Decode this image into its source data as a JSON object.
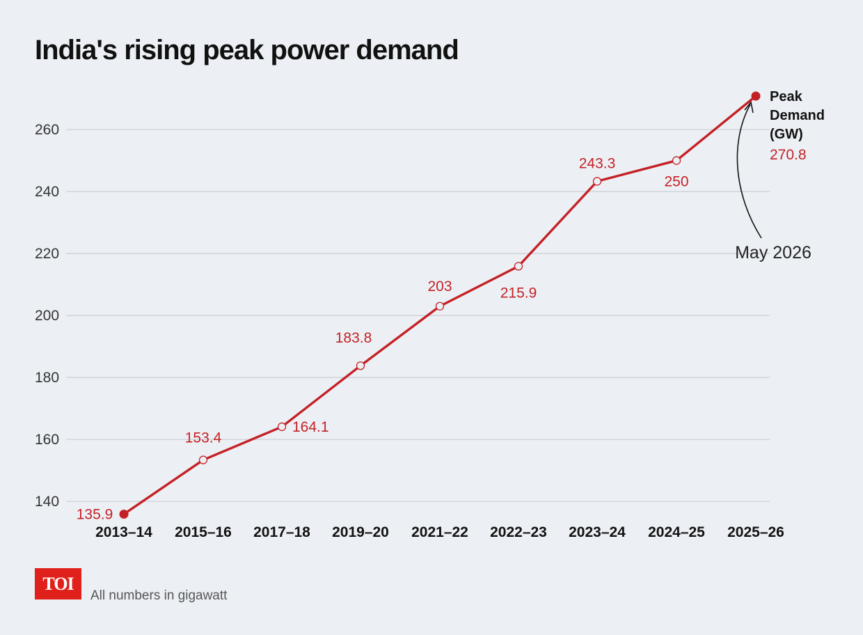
{
  "title": "India's rising peak power demand",
  "footer": {
    "logo_text": "TOI",
    "note": "All numbers in gigawatt"
  },
  "chart_data": {
    "type": "line",
    "title": "India's rising peak power demand",
    "xlabel": "",
    "ylabel": "",
    "categories": [
      "2013–14",
      "2015–16",
      "2017–18",
      "2019–20",
      "2021–22",
      "2022–23",
      "2023–24",
      "2024–25",
      "2025–26"
    ],
    "series": [
      {
        "name": "Peak Demand (GW)",
        "values": [
          135.9,
          153.4,
          164.1,
          183.8,
          203,
          215.9,
          243.3,
          250,
          270.8
        ],
        "labels": [
          "135.9",
          "153.4",
          "164.1",
          "183.8",
          "203",
          "215.9",
          "243.3",
          "250",
          "270.8"
        ]
      }
    ],
    "ylim": [
      136,
      270.8
    ],
    "yticks": [
      140,
      160,
      180,
      200,
      220,
      240,
      260
    ],
    "grid": true,
    "legend": "end-of-line label",
    "annotations": [
      {
        "text": "May 2026",
        "target_category": "2025–26"
      }
    ],
    "colors": {
      "line": "#c42126",
      "background": "#ecf0f4",
      "grid": "#c9ced6"
    }
  }
}
